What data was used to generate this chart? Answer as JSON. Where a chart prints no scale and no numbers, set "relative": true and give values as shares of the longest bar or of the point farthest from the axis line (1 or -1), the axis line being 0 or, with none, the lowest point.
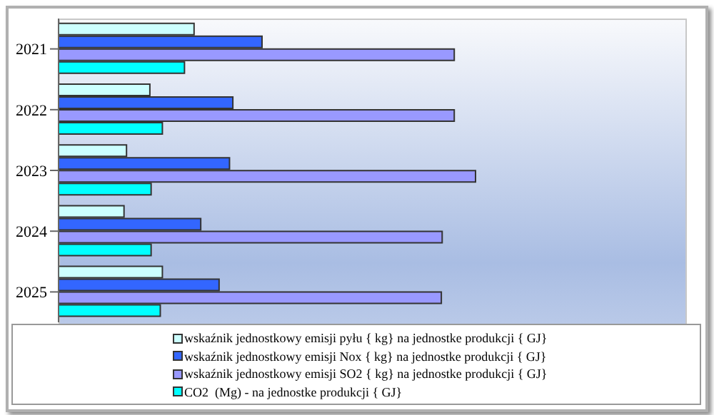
{
  "chart_data": {
    "type": "bar",
    "orientation": "horizontal",
    "relative": true,
    "categories": [
      "2021",
      "2022",
      "2023",
      "2024",
      "2025"
    ],
    "series": [
      {
        "name": "wskaźnik jednostkowy emisji pyłu { kg} na jednostke produkcji { GJ}",
        "color": "#ccffff",
        "values": [
          0.325,
          0.219,
          0.163,
          0.157,
          0.249
        ]
      },
      {
        "name": "wskaźnik jednostkowy emisji Nox { kg} na jednostke produkcji { GJ}",
        "color": "#3366ff",
        "values": [
          0.488,
          0.418,
          0.41,
          0.341,
          0.385
        ]
      },
      {
        "name": "wskaźnik jednostkowy emisji SO2 { kg} na jednostke produkcji { GJ}",
        "color": "#9999ff",
        "values": [
          0.949,
          0.949,
          1,
          0.92,
          0.918
        ]
      },
      {
        "name": "CO2  (Mg) - na jednostke produkcji { GJ}",
        "color": "#00ffff",
        "values": [
          0.302,
          0.249,
          0.222,
          0.222,
          0.244
        ]
      }
    ],
    "legend": "bottom"
  }
}
